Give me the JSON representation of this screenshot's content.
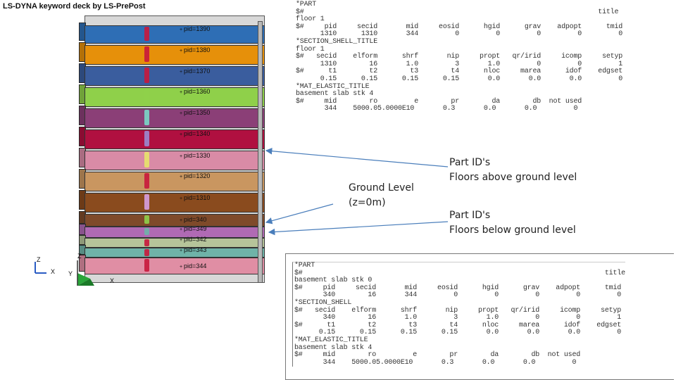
{
  "title": "LS-DYNA keyword deck by LS-PrePost",
  "building": {
    "floors": [
      {
        "pid": "pid=1390",
        "color": "#2e6eb5"
      },
      {
        "pid": "pid=1380",
        "color": "#e6900a"
      },
      {
        "pid": "pid=1370",
        "color": "#3a5d9e"
      },
      {
        "pid": "pid=1360",
        "color": "#8fd04a"
      },
      {
        "pid": "pid=1350",
        "color": "#8b3f77"
      },
      {
        "pid": "pid=1340",
        "color": "#b01040"
      },
      {
        "pid": "pid=1330",
        "color": "#d98ba6"
      },
      {
        "pid": "pid=1320",
        "color": "#c99660"
      },
      {
        "pid": "pid=1310",
        "color": "#8a4b1e"
      },
      {
        "pid": "pid=340",
        "color": "#7f4a2a"
      },
      {
        "pid": "pid=349",
        "color": "#b06ab4"
      },
      {
        "pid": "pid=342",
        "color": "#b6c49a"
      },
      {
        "pid": "pid=343",
        "color": "#6fb3a8"
      },
      {
        "pid": "pid=344",
        "color": "#e08ea4"
      }
    ]
  },
  "triad": {
    "z": "Z",
    "x": "X",
    "y": "Y"
  },
  "deck_top": [
    "*PART",
    "$#                                                                        title",
    "floor 1",
    "$#     pid     secid       mid     eosid      hgid      grav    adpopt      tmid",
    "      1310      1310       344         0         0         0         0         0",
    "*SECTION_SHELL_TITLE",
    "floor 1",
    "$#   secid    elform      shrf       nip     propt   qr/irid     icomp     setyp",
    "      1310        16       1.0         3       1.0         0         0         1",
    "$#      t1        t2        t3        t4      nloc     marea      idof    edgset",
    "      0.15      0.15      0.15      0.15       0.0       0.0       0.0         0",
    "*MAT_ELASTIC_TITLE",
    "basement slab stk 4",
    "$#     mid        ro         e        pr        da        db  not used",
    "       344    5000.05.0000E10       0.3       0.0       0.0         0"
  ],
  "deck_bottom": [
    "*PART",
    "$#                                                                          title",
    "basement slab stk 0",
    "$#     pid     secid       mid     eosid      hgid      grav    adpopt      tmid",
    "       340        16       344         0         0         0         0         0",
    "*SECTION_SHELL",
    "$#   secid    elform      shrf       nip     propt   qr/irid     icomp     setyp",
    "       340        16       1.0         3       1.0         0         0         1",
    "$#      t1        t2        t3        t4      nloc     marea      idof    edgset",
    "      0.15      0.15      0.15      0.15       0.0       0.0       0.0         0",
    "*MAT_ELASTIC_TITLE",
    "basement slab stk 4",
    "$#     mid        ro         e        pr        da        db  not used",
    "       344    5000.05.0000E10       0.3       0.0       0.0         0"
  ],
  "annotations": {
    "ground_line1": "Ground Level",
    "ground_line2": "(z=0m)",
    "above_line1": "Part ID's",
    "above_line2": "Floors above ground level",
    "below_line1": "Part ID's",
    "below_line2": "Floors below ground level"
  },
  "arrow_color": "#4a7ebb"
}
